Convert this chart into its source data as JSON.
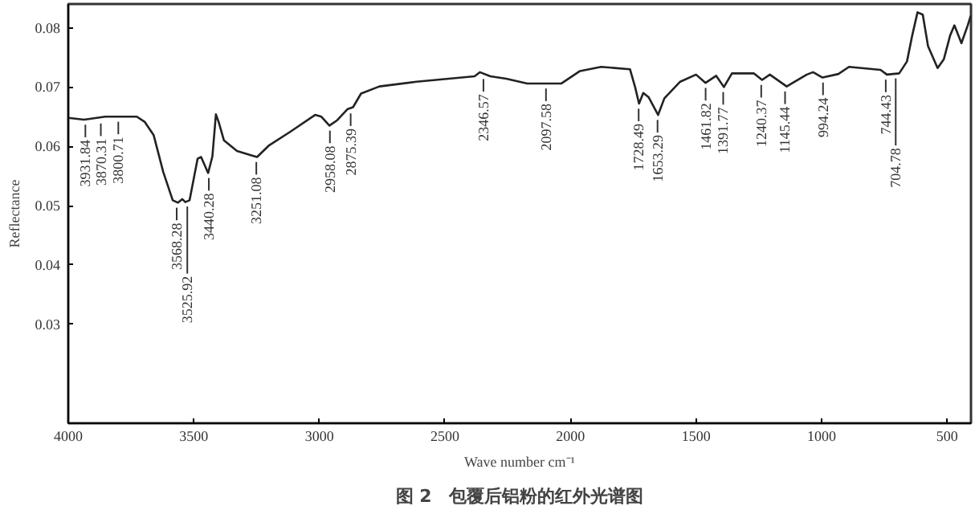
{
  "chart_data": {
    "type": "line",
    "title": "图 2　包覆后铝粉的红外光谱图",
    "xlabel": "Wave number cm⁻¹",
    "ylabel": "Reflectance",
    "xlim": [
      4000,
      405
    ],
    "ylim": [
      0.0133,
      0.084
    ],
    "xticks": [
      4000,
      3500,
      3000,
      2500,
      2000,
      1500,
      1000,
      500
    ],
    "yticks": [
      0.03,
      0.04,
      0.05,
      0.06,
      0.07,
      0.08
    ],
    "grid": false,
    "marker": "none",
    "line_style": "solid",
    "series": [
      {
        "color": "#222222",
        "x": [
          4000,
          3937,
          3853,
          3727,
          3695,
          3660,
          3622,
          3584,
          3563,
          3546,
          3534,
          3517,
          3485,
          3471,
          3443,
          3426,
          3412,
          3401,
          3380,
          3328,
          3265,
          3248,
          3202,
          3118,
          3017,
          2992,
          2960,
          2929,
          2887,
          2866,
          2834,
          2761,
          2613,
          2382,
          2361,
          2319,
          2256,
          2172,
          2036,
          1962,
          1878,
          1763,
          1742,
          1727,
          1710,
          1689,
          1651,
          1626,
          1563,
          1500,
          1462,
          1420,
          1389,
          1357,
          1269,
          1237,
          1206,
          1139,
          1059,
          1034,
          996,
          933,
          891,
          765,
          740,
          691,
          660,
          639,
          618,
          597,
          576,
          538,
          513,
          488,
          471,
          443,
          418,
          406
        ],
        "values": [
          0.0648,
          0.0645,
          0.065,
          0.065,
          0.0641,
          0.0619,
          0.0557,
          0.0509,
          0.0505,
          0.0511,
          0.0506,
          0.0509,
          0.0579,
          0.0582,
          0.0555,
          0.0583,
          0.0654,
          0.0641,
          0.061,
          0.0592,
          0.0584,
          0.0582,
          0.0601,
          0.0624,
          0.0653,
          0.065,
          0.0635,
          0.0644,
          0.0663,
          0.0666,
          0.0689,
          0.0701,
          0.0709,
          0.0718,
          0.0725,
          0.0718,
          0.0714,
          0.0706,
          0.0706,
          0.0727,
          0.0734,
          0.073,
          0.0699,
          0.0672,
          0.069,
          0.0683,
          0.0653,
          0.0681,
          0.0709,
          0.0721,
          0.0707,
          0.0719,
          0.07,
          0.0723,
          0.0723,
          0.0712,
          0.0721,
          0.0701,
          0.0721,
          0.0725,
          0.0716,
          0.0722,
          0.0734,
          0.0729,
          0.0721,
          0.0723,
          0.0743,
          0.0787,
          0.0826,
          0.0822,
          0.0769,
          0.0732,
          0.0747,
          0.0787,
          0.0804,
          0.0774,
          0.0804,
          0.082
        ]
      }
    ],
    "annotations": [
      {
        "text": "3931.84",
        "x": 3931.84,
        "y": 0.0645
      },
      {
        "text": "3870.31",
        "x": 3870.31,
        "y": 0.0647
      },
      {
        "text": "3800.71",
        "x": 3800.71,
        "y": 0.065
      },
      {
        "text": "3568.28",
        "x": 3568.28,
        "y": 0.0505
      },
      {
        "text": "3525.92",
        "x": 3525.92,
        "y": 0.0507
      },
      {
        "text": "3440.28",
        "x": 3440.28,
        "y": 0.0555
      },
      {
        "text": "3251.08",
        "x": 3251.08,
        "y": 0.0582
      },
      {
        "text": "2958.08",
        "x": 2958.08,
        "y": 0.0635
      },
      {
        "text": "2875.39",
        "x": 2875.39,
        "y": 0.0664
      },
      {
        "text": "2346.57",
        "x": 2346.57,
        "y": 0.0722
      },
      {
        "text": "2097.58",
        "x": 2097.58,
        "y": 0.0706
      },
      {
        "text": "1728.49",
        "x": 1728.49,
        "y": 0.0672
      },
      {
        "text": "1653.29",
        "x": 1653.29,
        "y": 0.0653
      },
      {
        "text": "1461.82",
        "x": 1461.82,
        "y": 0.0707
      },
      {
        "text": "1391.77",
        "x": 1391.77,
        "y": 0.07
      },
      {
        "text": "1240.37",
        "x": 1240.37,
        "y": 0.0712
      },
      {
        "text": "1145.44",
        "x": 1145.44,
        "y": 0.0701
      },
      {
        "text": "994.24",
        "x": 994.24,
        "y": 0.0716
      },
      {
        "text": "744.43",
        "x": 744.43,
        "y": 0.0721
      },
      {
        "text": "704.78",
        "x": 704.78,
        "y": 0.0723
      }
    ]
  }
}
